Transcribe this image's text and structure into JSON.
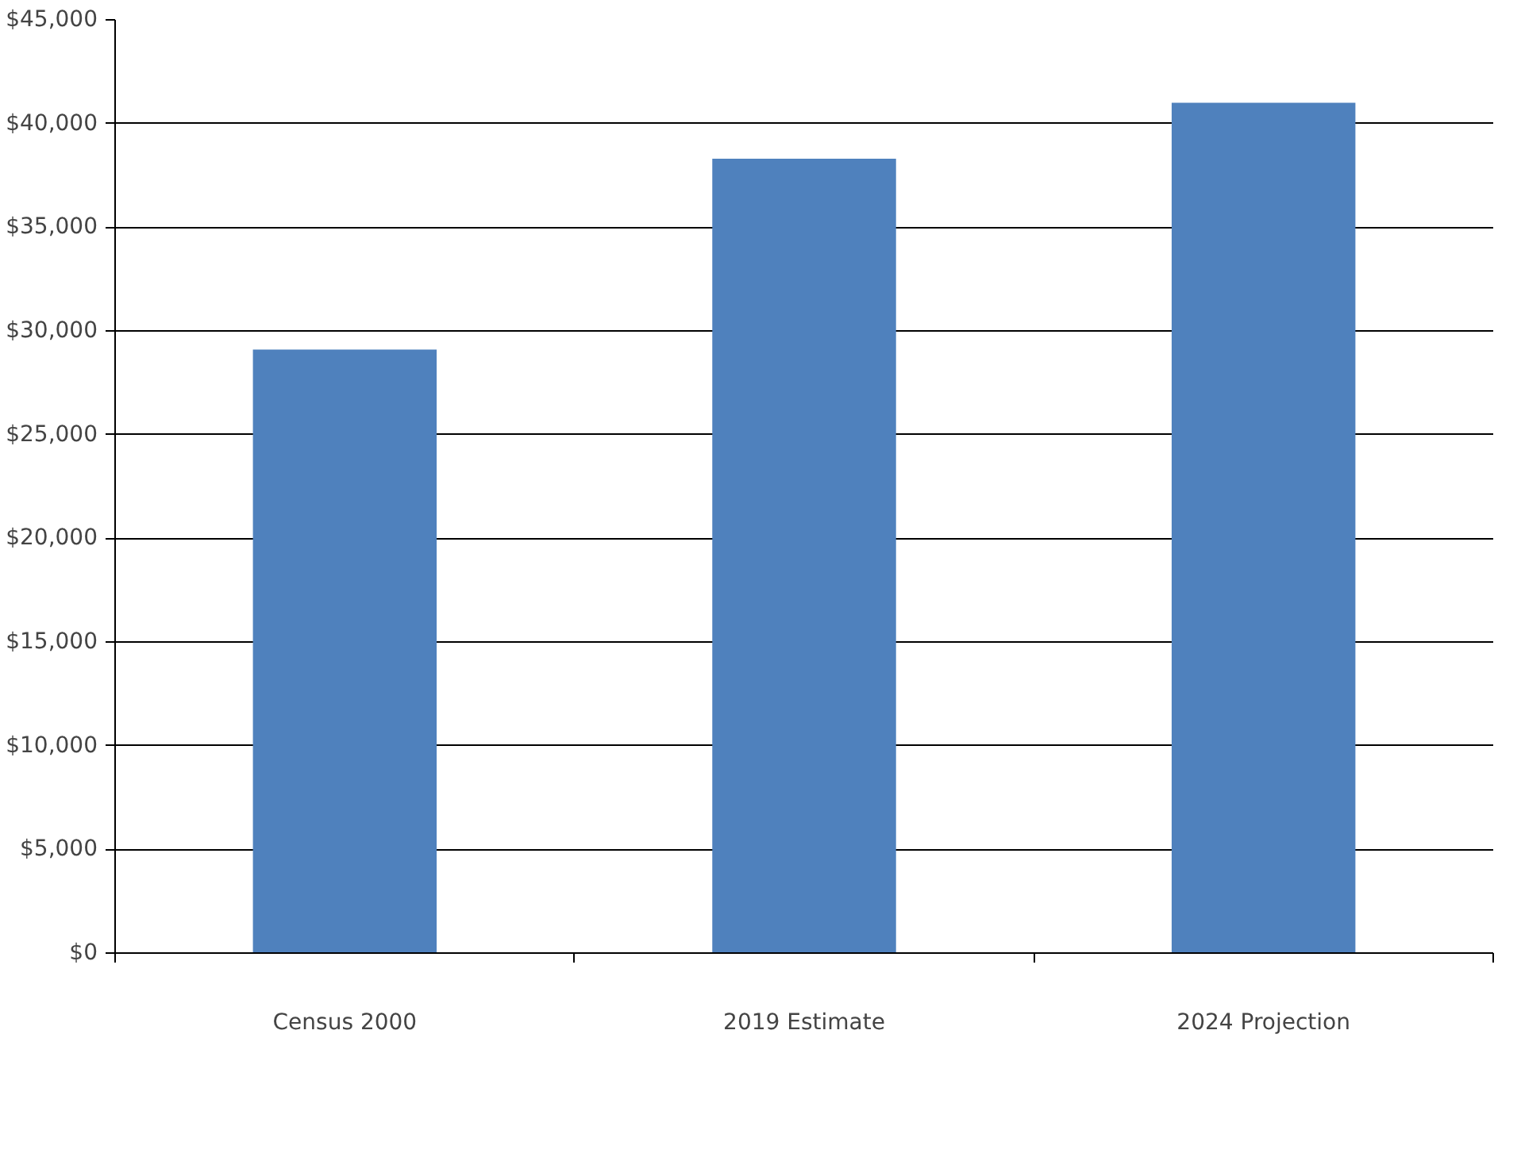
{
  "chart_data": {
    "type": "bar",
    "categories": [
      "Census 2000",
      "2019 Estimate",
      "2024 Projection"
    ],
    "values": [
      29100,
      38300,
      41000
    ],
    "color": "#4f81bd",
    "ylim": [
      0,
      45000
    ],
    "yticks": [
      {
        "value": 0,
        "label": "$0"
      },
      {
        "value": 5000,
        "label": "$5,000"
      },
      {
        "value": 10000,
        "label": "$10,000"
      },
      {
        "value": 15000,
        "label": "$15,000"
      },
      {
        "value": 20000,
        "label": "$20,000"
      },
      {
        "value": 25000,
        "label": "$25,000"
      },
      {
        "value": 30000,
        "label": "$30,000"
      },
      {
        "value": 35000,
        "label": "$35,000"
      },
      {
        "value": 40000,
        "label": "$40,000"
      },
      {
        "value": 45000,
        "label": "$45,000"
      }
    ],
    "grid": "y"
  }
}
